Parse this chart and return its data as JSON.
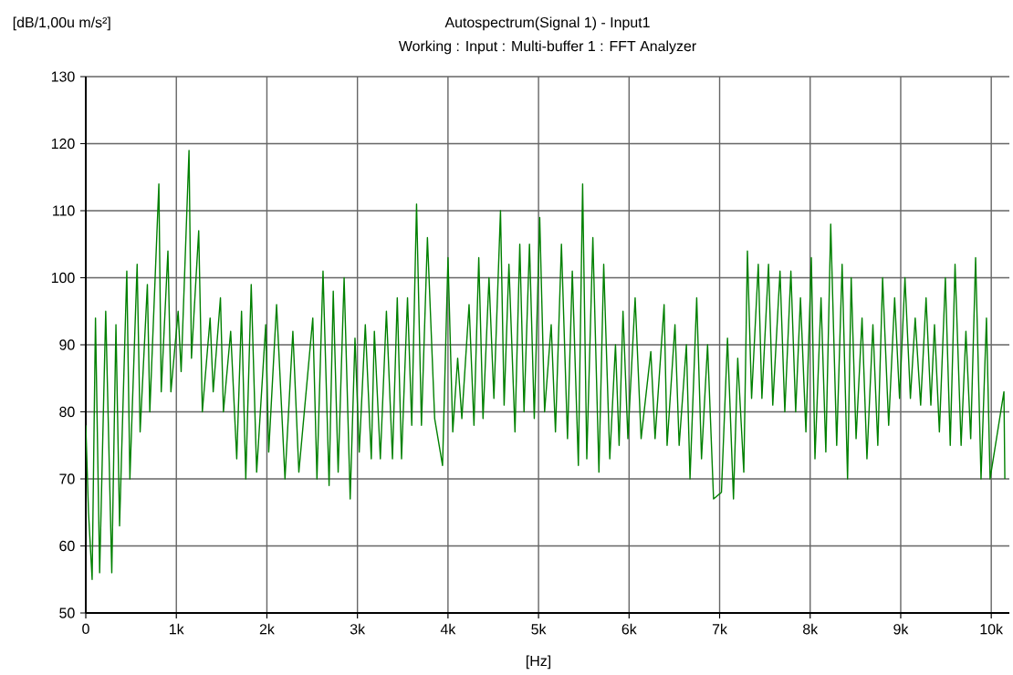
{
  "chart_data": {
    "type": "line",
    "title": "Autospectrum(Signal 1) - Input1",
    "subtitle": "Working : Input : Multi-buffer 1 : FFT Analyzer",
    "xlabel": "[Hz]",
    "ylabel": "[dB/1,00u m/s²]",
    "xlim": [
      0,
      10200
    ],
    "ylim": [
      50,
      130
    ],
    "xticks": [
      {
        "value": 0,
        "label": "0"
      },
      {
        "value": 1000,
        "label": "1k"
      },
      {
        "value": 2000,
        "label": "2k"
      },
      {
        "value": 3000,
        "label": "3k"
      },
      {
        "value": 4000,
        "label": "4k"
      },
      {
        "value": 5000,
        "label": "5k"
      },
      {
        "value": 6000,
        "label": "6k"
      },
      {
        "value": 7000,
        "label": "7k"
      },
      {
        "value": 8000,
        "label": "8k"
      },
      {
        "value": 9000,
        "label": "9k"
      },
      {
        "value": 10000,
        "label": "10k"
      }
    ],
    "yticks": [
      50,
      60,
      70,
      80,
      90,
      100,
      110,
      120,
      130
    ],
    "grid": true,
    "x": [
      0,
      30,
      70,
      107,
      153,
      220,
      287,
      333,
      373,
      453,
      487,
      567,
      600,
      680,
      707,
      807,
      833,
      907,
      940,
      1020,
      1053,
      1140,
      1167,
      1247,
      1287,
      1373,
      1407,
      1487,
      1520,
      1600,
      1667,
      1720,
      1767,
      1827,
      1887,
      1987,
      2020,
      2107,
      2200,
      2287,
      2353,
      2507,
      2553,
      2620,
      2687,
      2733,
      2787,
      2853,
      2920,
      2973,
      3020,
      3087,
      3153,
      3187,
      3253,
      3320,
      3387,
      3440,
      3487,
      3553,
      3600,
      3653,
      3707,
      3773,
      3853,
      3940,
      4000,
      4053,
      4107,
      4153,
      4233,
      4287,
      4340,
      4387,
      4453,
      4507,
      4580,
      4620,
      4673,
      4740,
      4793,
      4840,
      4900,
      4953,
      5013,
      5067,
      5140,
      5187,
      5253,
      5320,
      5373,
      5440,
      5487,
      5533,
      5600,
      5667,
      5720,
      5787,
      5850,
      5890,
      5933,
      5987,
      6067,
      6133,
      6240,
      6287,
      6387,
      6420,
      6507,
      6553,
      6633,
      6673,
      6747,
      6800,
      6867,
      6933,
      7020,
      7087,
      7153,
      7200,
      7267,
      7307,
      7353,
      7427,
      7467,
      7540,
      7587,
      7667,
      7720,
      7787,
      7840,
      7893,
      7953,
      8013,
      8053,
      8120,
      8173,
      8227,
      8293,
      8353,
      8413,
      8453,
      8507,
      8573,
      8627,
      8693,
      8747,
      8800,
      8867,
      8933,
      8987,
      9047,
      9107,
      9160,
      9220,
      9280,
      9333,
      9373,
      9427,
      9493,
      9547,
      9600,
      9667,
      9720,
      9773,
      9827,
      9887,
      9947,
      9987,
      10140,
      10150
    ],
    "series": [
      {
        "color": "#008000",
        "values": [
          78,
          65,
          55,
          94,
          56,
          95,
          56,
          93,
          63,
          101,
          70,
          102,
          77,
          99,
          80,
          114,
          83,
          104,
          83,
          95,
          86,
          119,
          88,
          107,
          80,
          94,
          83,
          97,
          80,
          92,
          73,
          95,
          70,
          99,
          71,
          93,
          74,
          96,
          70,
          92,
          71,
          94,
          70,
          101,
          69,
          98,
          71,
          100,
          67,
          91,
          74,
          93,
          73,
          92,
          73,
          95,
          73,
          97,
          73,
          97,
          78,
          111,
          78,
          106,
          79,
          72,
          103,
          77,
          88,
          79,
          96,
          78,
          103,
          79,
          100,
          82,
          110,
          81,
          102,
          77,
          105,
          80,
          105,
          79,
          109,
          80,
          93,
          77,
          105,
          76,
          101,
          72,
          114,
          73,
          106,
          71,
          102,
          73,
          90,
          75,
          95,
          76,
          97,
          76,
          89,
          76,
          96,
          75,
          93,
          75,
          90,
          70,
          97,
          73,
          90,
          67,
          68,
          91,
          67,
          88,
          71,
          104,
          82,
          102,
          82,
          102,
          81,
          101,
          80,
          101,
          80,
          97,
          77,
          103,
          73,
          97,
          74,
          108,
          75,
          102,
          70,
          100,
          76,
          94,
          73,
          93,
          75,
          100,
          78,
          97,
          82,
          100,
          82,
          94,
          81,
          97,
          81,
          93,
          77,
          100,
          75,
          102,
          75,
          92,
          76,
          103,
          70,
          94,
          70,
          83,
          70
        ]
      }
    ]
  }
}
